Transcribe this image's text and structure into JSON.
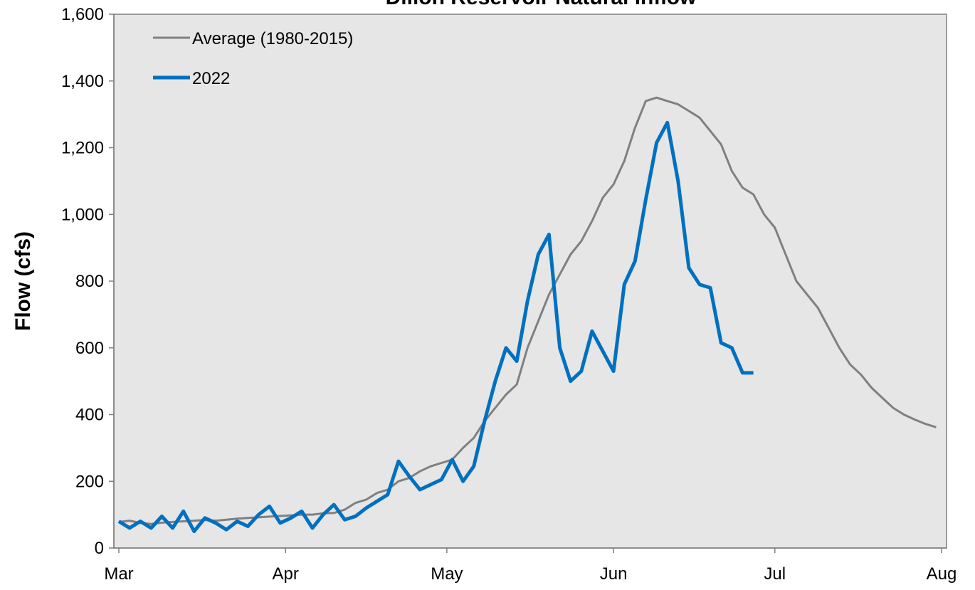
{
  "chart_data": {
    "type": "line",
    "title": "Dillon Reservoir Natural Inflow",
    "y_label": "Flow (cfs)",
    "x": [
      0,
      2,
      4,
      6,
      8,
      10,
      12,
      14,
      16,
      18,
      20,
      22,
      24,
      26,
      28,
      30,
      32,
      34,
      36,
      38,
      40,
      42,
      44,
      46,
      48,
      50,
      52,
      54,
      56,
      58,
      60,
      62,
      64,
      66,
      68,
      70,
      72,
      74,
      76,
      78,
      80,
      82,
      84,
      86,
      88,
      90,
      92,
      94,
      96,
      98,
      100,
      102,
      104,
      106,
      108,
      110,
      112,
      114,
      116,
      118,
      120,
      122,
      124,
      126,
      128,
      130,
      132,
      134,
      136,
      138,
      140,
      142,
      144,
      146,
      148,
      150,
      152
    ],
    "xlim": [
      0,
      153
    ],
    "xticks": [
      {
        "value": 0,
        "label": "Mar"
      },
      {
        "value": 31,
        "label": "Apr"
      },
      {
        "value": 61,
        "label": "May"
      },
      {
        "value": 92,
        "label": "Jun"
      },
      {
        "value": 122,
        "label": "Jul"
      },
      {
        "value": 153,
        "label": "Aug"
      }
    ],
    "ylim": [
      0,
      1600
    ],
    "yticks": [
      0,
      200,
      400,
      600,
      800,
      {
        "value": 1000,
        "label": "1,000"
      },
      {
        "value": 1200,
        "label": "1,200"
      },
      {
        "value": 1400,
        "label": "1,400"
      },
      {
        "value": 1600,
        "label": "1,600"
      }
    ],
    "legend": "upper left",
    "series": [
      {
        "name": "Average (1980-2015)",
        "color": "#808080",
        "width": 3,
        "values": [
          78,
          82,
          75,
          72,
          76,
          78,
          80,
          82,
          84,
          82,
          85,
          88,
          90,
          92,
          94,
          96,
          98,
          100,
          100,
          104,
          105,
          115,
          135,
          145,
          165,
          175,
          200,
          210,
          230,
          245,
          255,
          265,
          300,
          330,
          380,
          420,
          460,
          490,
          600,
          680,
          760,
          820,
          880,
          920,
          980,
          1050,
          1090,
          1160,
          1260,
          1340,
          1350,
          1340,
          1330,
          1310,
          1290,
          1250,
          1210,
          1130,
          1080,
          1060,
          1000,
          960,
          880,
          800,
          760,
          720,
          660,
          600,
          550,
          520,
          480,
          450,
          420,
          400,
          385,
          372,
          362
        ]
      },
      {
        "name": "2022",
        "color": "#0070c0",
        "width": 5,
        "values": [
          80,
          60,
          80,
          60,
          95,
          60,
          110,
          50,
          90,
          75,
          55,
          80,
          65,
          100,
          125,
          75,
          90,
          110,
          60,
          100,
          130,
          85,
          95,
          120,
          140,
          160,
          260,
          215,
          175,
          190,
          205,
          265,
          200,
          245,
          380,
          500,
          600,
          560,
          740,
          880,
          940,
          600,
          500,
          530,
          650,
          590,
          530,
          790,
          860,
          1045,
          1215,
          1275,
          1100,
          840,
          790,
          780,
          615,
          600,
          525,
          525,
          null,
          null,
          null,
          null,
          null,
          null,
          null,
          null,
          null,
          null,
          null,
          null,
          null,
          null,
          null,
          null,
          null
        ]
      }
    ]
  }
}
